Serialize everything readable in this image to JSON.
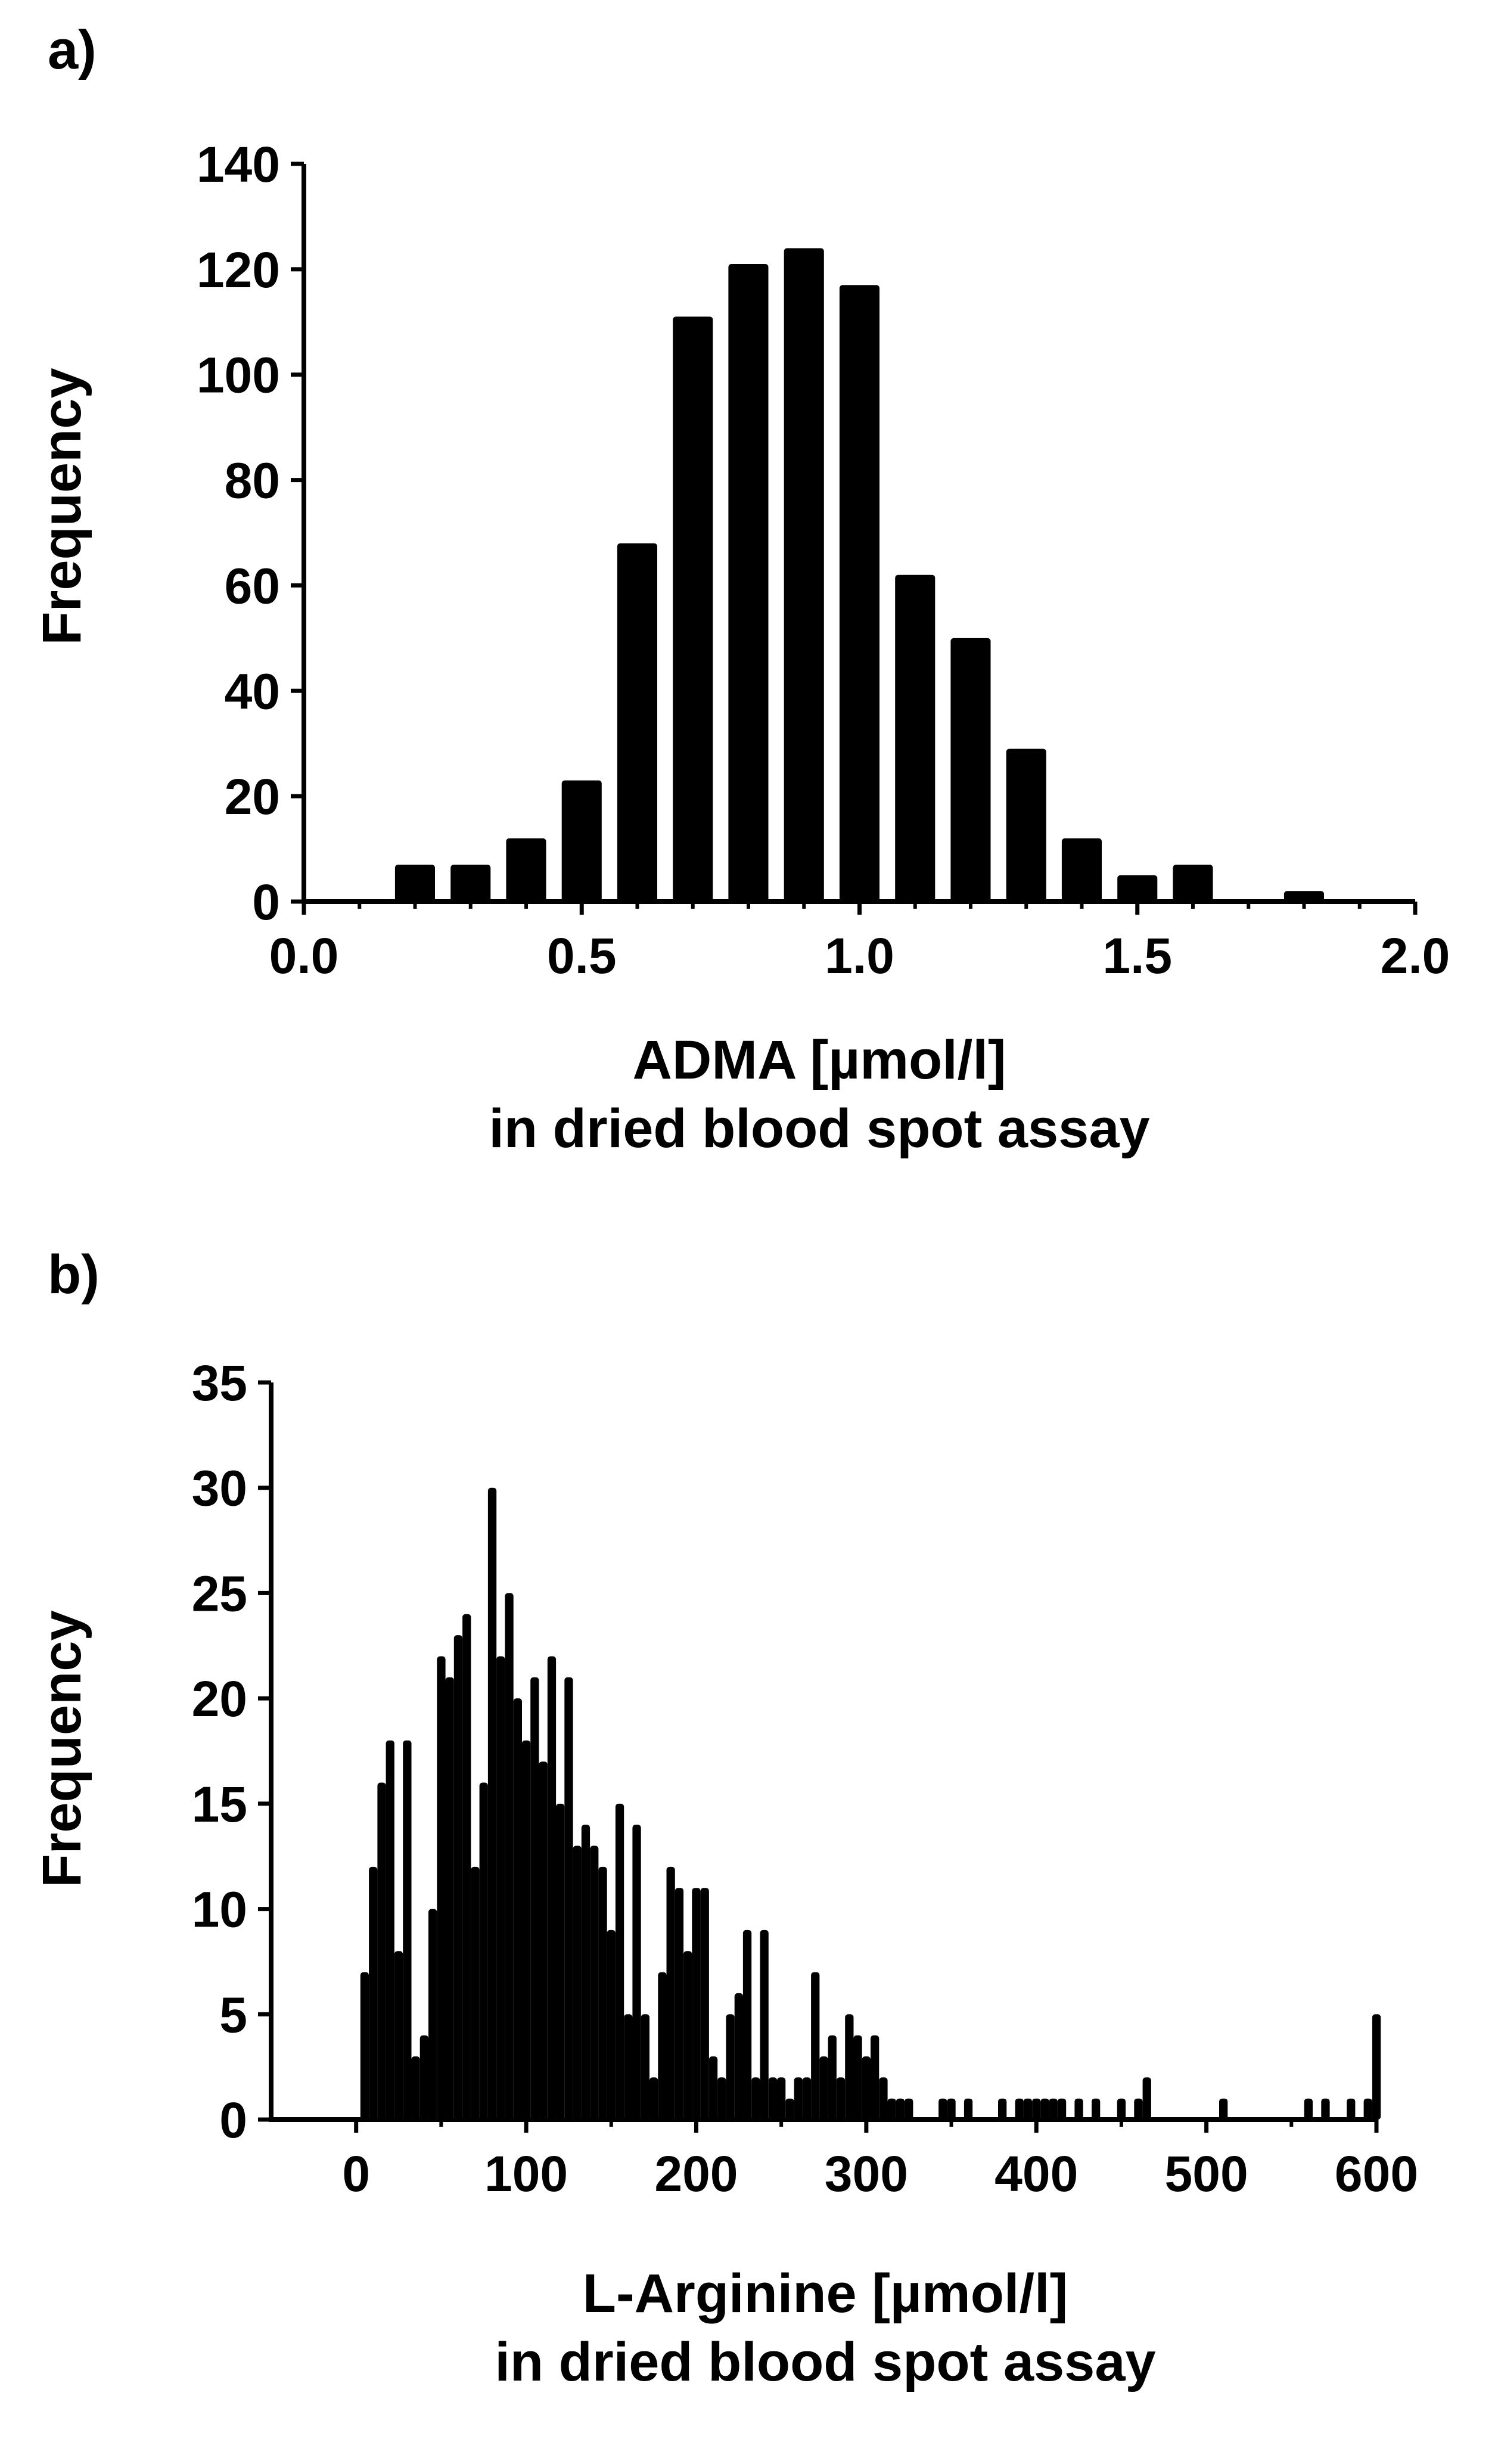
{
  "chart_data": [
    {
      "panel_label": "a)",
      "type": "bar",
      "title": "",
      "xlabel": "ADMA [µmol/l]",
      "xlabel2": "in dried blood spot assay",
      "ylabel": "Frequency",
      "xlim": [
        0.0,
        2.0
      ],
      "ylim": [
        0,
        140
      ],
      "xticks": [
        "0.0",
        "0.5",
        "1.0",
        "1.5",
        "2.0"
      ],
      "yticks": [
        "0",
        "20",
        "40",
        "60",
        "80",
        "100",
        "120",
        "140"
      ],
      "bin_width": 0.1,
      "x": [
        0.2,
        0.3,
        0.4,
        0.5,
        0.6,
        0.7,
        0.8,
        0.9,
        1.0,
        1.1,
        1.2,
        1.3,
        1.4,
        1.5,
        1.6,
        1.7,
        1.8
      ],
      "values": [
        7,
        7,
        12,
        23,
        68,
        111,
        121,
        124,
        117,
        62,
        50,
        29,
        12,
        5,
        7,
        0,
        2
      ]
    },
    {
      "panel_label": "b)",
      "type": "bar",
      "title": "",
      "xlabel": "L-Arginine [µmol/l]",
      "xlabel2": "in dried blood spot assay",
      "ylabel": "Frequency",
      "xlim": [
        -50,
        600
      ],
      "ylim": [
        0,
        35
      ],
      "xticks": [
        "0",
        "100",
        "200",
        "300",
        "400",
        "500",
        "600"
      ],
      "yticks": [
        "0",
        "5",
        "10",
        "15",
        "20",
        "25",
        "30",
        "35"
      ],
      "bin_width": 5,
      "x": [
        5,
        10,
        15,
        20,
        25,
        30,
        35,
        40,
        45,
        50,
        55,
        60,
        65,
        70,
        75,
        80,
        85,
        90,
        95,
        100,
        105,
        110,
        115,
        120,
        125,
        130,
        135,
        140,
        145,
        150,
        155,
        160,
        165,
        170,
        175,
        180,
        185,
        190,
        195,
        200,
        205,
        210,
        215,
        220,
        225,
        230,
        235,
        240,
        245,
        250,
        255,
        260,
        265,
        270,
        275,
        280,
        285,
        290,
        295,
        300,
        305,
        310,
        315,
        320,
        325,
        345,
        350,
        360,
        380,
        390,
        395,
        400,
        405,
        410,
        415,
        425,
        435,
        450,
        460,
        465,
        510,
        560,
        570,
        585,
        595,
        600
      ],
      "values": [
        7,
        12,
        16,
        18,
        8,
        18,
        3,
        4,
        10,
        22,
        21,
        23,
        24,
        12,
        16,
        30,
        22,
        25,
        20,
        18,
        21,
        17,
        22,
        15,
        21,
        13,
        14,
        13,
        12,
        9,
        15,
        5,
        14,
        5,
        2,
        7,
        12,
        11,
        8,
        11,
        11,
        3,
        2,
        5,
        6,
        9,
        2,
        9,
        2,
        2,
        1,
        2,
        2,
        7,
        3,
        4,
        2,
        5,
        4,
        3,
        4,
        2,
        1,
        1,
        1,
        1,
        1,
        1,
        1,
        1,
        1,
        1,
        1,
        1,
        1,
        1,
        1,
        1,
        1,
        2,
        1,
        1,
        1,
        1,
        1,
        5
      ]
    }
  ]
}
